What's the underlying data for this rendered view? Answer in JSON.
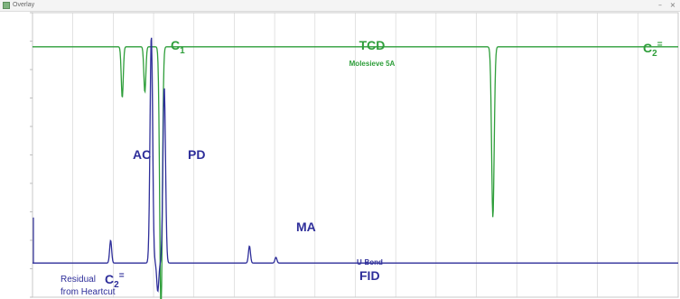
{
  "window": {
    "title": "Overlay",
    "minimize_glyph": "–",
    "close_glyph": "×"
  },
  "chart_data": {
    "type": "line",
    "title": "",
    "xlabel": "",
    "ylabel": "",
    "grid": true,
    "colors": {
      "tcd": "#2e9e3a",
      "fid": "#2e2e9a",
      "grid": "#d0d0d0",
      "frame": "#c8c8c8"
    },
    "series": [
      {
        "name": "TCD",
        "detector_label": "TCD",
        "column_label": "Molesieve 5A",
        "color": "#2e9e3a",
        "baseline": 0.88,
        "peaks": [
          {
            "t": 0.139,
            "height": -0.18
          },
          {
            "t": 0.174,
            "height": -0.16
          },
          {
            "t": 0.199,
            "height": -0.95
          },
          {
            "t": 0.713,
            "height": -0.6
          }
        ]
      },
      {
        "name": "FID",
        "detector_label": "FID",
        "column_label": "U-Bond",
        "color": "#2e2e9a",
        "baseline": 0.12,
        "peaks": [
          {
            "t": 0.121,
            "height": 0.08
          },
          {
            "t": 0.184,
            "height": 0.8
          },
          {
            "t": 0.194,
            "height": -0.1
          },
          {
            "t": 0.204,
            "height": 0.62
          },
          {
            "t": 0.336,
            "height": 0.06
          },
          {
            "t": 0.377,
            "height": 0.02
          }
        ]
      }
    ],
    "annotations": [
      {
        "key": "ac",
        "text": "AC",
        "series": "FID"
      },
      {
        "key": "pd",
        "text": "PD",
        "series": "FID"
      },
      {
        "key": "ma",
        "text": "MA",
        "series": "FID"
      },
      {
        "key": "c1",
        "text": "C",
        "sub": "1",
        "series": "TCD"
      },
      {
        "key": "c2tcd",
        "text": "C",
        "sub": "2",
        "sup": "=",
        "series": "TCD"
      },
      {
        "key": "residual",
        "text": "Residual",
        "series": "FID"
      },
      {
        "key": "c2fid",
        "text": "C",
        "sub": "2",
        "sup": "=",
        "series": "FID"
      },
      {
        "key": "heartcut",
        "text": "from Heartcut",
        "series": "FID"
      }
    ]
  }
}
